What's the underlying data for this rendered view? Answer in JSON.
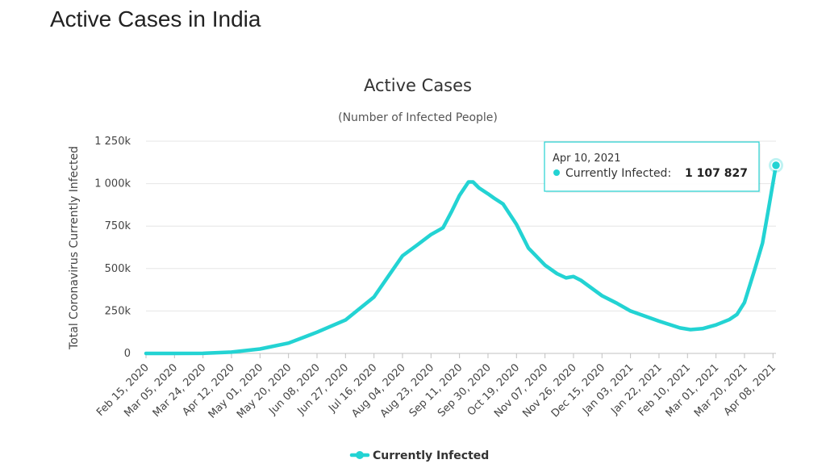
{
  "page": {
    "heading": "Active Cases in India"
  },
  "colors": {
    "series": "#23d3d3",
    "grid": "#e6e6e6",
    "axis": "#c0c0c0"
  },
  "chart_data": {
    "type": "line",
    "title": "Active Cases",
    "subtitle": "(Number of Infected People)",
    "ylabel": "Total Coronavirus Currently Infected",
    "xlabel": "",
    "ylim": [
      0,
      1250000
    ],
    "yticks": [
      0,
      250000,
      500000,
      750000,
      1000000,
      1250000
    ],
    "ytick_labels": [
      "0",
      "250k",
      "500k",
      "750k",
      "1 000k",
      "1 250k"
    ],
    "xlim": [
      "2020-02-15",
      "2021-04-10"
    ],
    "xtick_labels": [
      "Feb 15, 2020",
      "Mar 05, 2020",
      "Mar 24, 2020",
      "Apr 12, 2020",
      "May 01, 2020",
      "May 20, 2020",
      "Jun 08, 2020",
      "Jun 27, 2020",
      "Jul 16, 2020",
      "Aug 04, 2020",
      "Aug 23, 2020",
      "Sep 11, 2020",
      "Sep 30, 2020",
      "Oct 19, 2020",
      "Nov 07, 2020",
      "Nov 26, 2020",
      "Dec 15, 2020",
      "Jan 03, 2021",
      "Jan 22, 2021",
      "Feb 10, 2021",
      "Mar 01, 2021",
      "Mar 20, 2021",
      "Apr 08, 2021"
    ],
    "xtick_dates": [
      "2020-02-15",
      "2020-03-05",
      "2020-03-24",
      "2020-04-12",
      "2020-05-01",
      "2020-05-20",
      "2020-06-08",
      "2020-06-27",
      "2020-07-16",
      "2020-08-04",
      "2020-08-23",
      "2020-09-11",
      "2020-09-30",
      "2020-10-19",
      "2020-11-07",
      "2020-11-26",
      "2020-12-15",
      "2021-01-03",
      "2021-01-22",
      "2021-02-10",
      "2021-03-01",
      "2021-03-20",
      "2021-04-08"
    ],
    "grid": true,
    "legend_position": "bottom-center",
    "series": [
      {
        "name": "Currently Infected",
        "points": [
          [
            "2020-02-15",
            0
          ],
          [
            "2020-03-05",
            30
          ],
          [
            "2020-03-24",
            500
          ],
          [
            "2020-04-12",
            7500
          ],
          [
            "2020-05-01",
            26000
          ],
          [
            "2020-05-20",
            61000
          ],
          [
            "2020-06-08",
            125000
          ],
          [
            "2020-06-27",
            197000
          ],
          [
            "2020-07-16",
            332000
          ],
          [
            "2020-07-26",
            460000
          ],
          [
            "2020-08-04",
            575000
          ],
          [
            "2020-08-14",
            640000
          ],
          [
            "2020-08-23",
            700000
          ],
          [
            "2020-08-31",
            740000
          ],
          [
            "2020-09-06",
            840000
          ],
          [
            "2020-09-11",
            930000
          ],
          [
            "2020-09-17",
            1010000
          ],
          [
            "2020-09-20",
            1010000
          ],
          [
            "2020-09-24",
            975000
          ],
          [
            "2020-09-30",
            940000
          ],
          [
            "2020-10-04",
            915000
          ],
          [
            "2020-10-10",
            880000
          ],
          [
            "2020-10-19",
            760000
          ],
          [
            "2020-10-27",
            620000
          ],
          [
            "2020-11-07",
            520000
          ],
          [
            "2020-11-15",
            470000
          ],
          [
            "2020-11-21",
            445000
          ],
          [
            "2020-11-26",
            453000
          ],
          [
            "2020-12-01",
            430000
          ],
          [
            "2020-12-15",
            340000
          ],
          [
            "2020-12-25",
            295000
          ],
          [
            "2021-01-03",
            250000
          ],
          [
            "2021-01-22",
            190000
          ],
          [
            "2021-02-05",
            150000
          ],
          [
            "2021-02-12",
            140000
          ],
          [
            "2021-02-20",
            146000
          ],
          [
            "2021-03-01",
            168000
          ],
          [
            "2021-03-10",
            200000
          ],
          [
            "2021-03-15",
            230000
          ],
          [
            "2021-03-20",
            300000
          ],
          [
            "2021-03-27",
            500000
          ],
          [
            "2021-04-01",
            650000
          ],
          [
            "2021-04-05",
            850000
          ],
          [
            "2021-04-10",
            1107827
          ]
        ]
      }
    ],
    "tooltip": {
      "date": "Apr 10, 2021",
      "label": "Currently Infected:",
      "value": "1 107 827"
    }
  }
}
